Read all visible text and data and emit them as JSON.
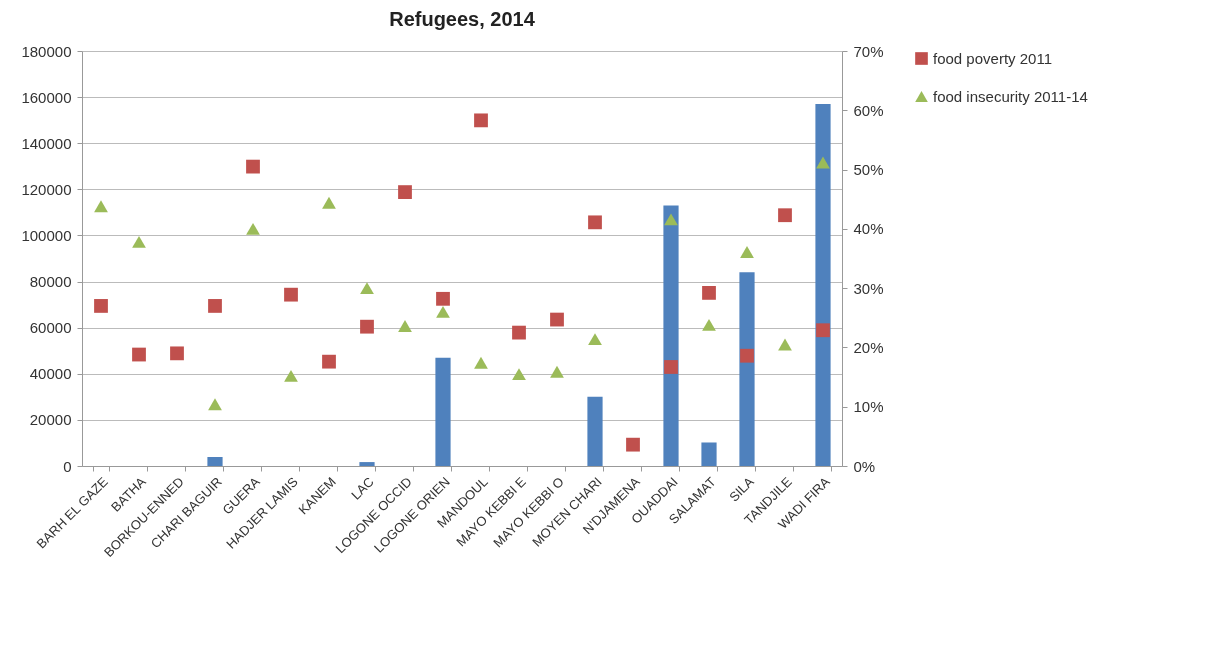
{
  "chart_data": {
    "type": "bar",
    "title": "Refugees, 2014",
    "categories": [
      "BARH EL GAZE",
      "BATHA",
      "BORKOU-ENNED",
      "CHARI BAGUIR",
      "GUERA",
      "HADJER LAMIS",
      "KANEM",
      "LAC",
      "LOGONE OCCID",
      "LOGONE ORIEN",
      "MANDOUL",
      "MAYO KEBBI E",
      "MAYO KEBBI O",
      "MOYEN CHARI",
      "N'DJAMENA",
      "OUADDAI",
      "SALAMAT",
      "SILA",
      "TANDJILE",
      "WADI FIRA"
    ],
    "series": [
      {
        "color": "#4f81bd",
        "values": [
          0,
          0,
          0,
          3900,
          0,
          0,
          0,
          1700,
          0,
          47000,
          0,
          0,
          0,
          30000,
          0,
          113000,
          10200,
          84000,
          0,
          157000
        ]
      },
      {
        "name": "food poverty 2011",
        "type": "scatter",
        "axis": "y2",
        "marker": "square",
        "color": "#c0504d",
        "values": [
          27.0,
          18.8,
          19.0,
          27.0,
          50.5,
          28.9,
          17.6,
          23.5,
          46.2,
          28.2,
          58.3,
          22.5,
          24.7,
          41.1,
          3.6,
          16.7,
          29.2,
          18.6,
          42.3,
          22.9
        ]
      },
      {
        "name": "food insecurity 2011-14",
        "type": "scatter",
        "axis": "y2",
        "marker": "triangle",
        "color": "#9bbb59",
        "values": [
          43.8,
          37.8,
          null,
          10.4,
          40.0,
          15.2,
          44.4,
          30.0,
          23.6,
          26.0,
          17.4,
          15.5,
          15.9,
          21.4,
          null,
          41.6,
          23.8,
          36.1,
          20.5,
          51.2
        ]
      }
    ],
    "ylim": [
      0,
      180000
    ],
    "yticks": [
      0,
      20000,
      40000,
      60000,
      80000,
      100000,
      120000,
      140000,
      160000,
      180000
    ],
    "y2lim": [
      0,
      70
    ],
    "y2ticks": [
      {
        "value": 0,
        "label": "0%"
      },
      {
        "value": 10,
        "label": "10%"
      },
      {
        "value": 20,
        "label": "20%"
      },
      {
        "value": 30,
        "label": "30%"
      },
      {
        "value": 40,
        "label": "40%"
      },
      {
        "value": 50,
        "label": "50%"
      },
      {
        "value": 60,
        "label": "60%"
      },
      {
        "value": 70,
        "label": "70%"
      }
    ],
    "grid": "y",
    "legend": "right"
  }
}
